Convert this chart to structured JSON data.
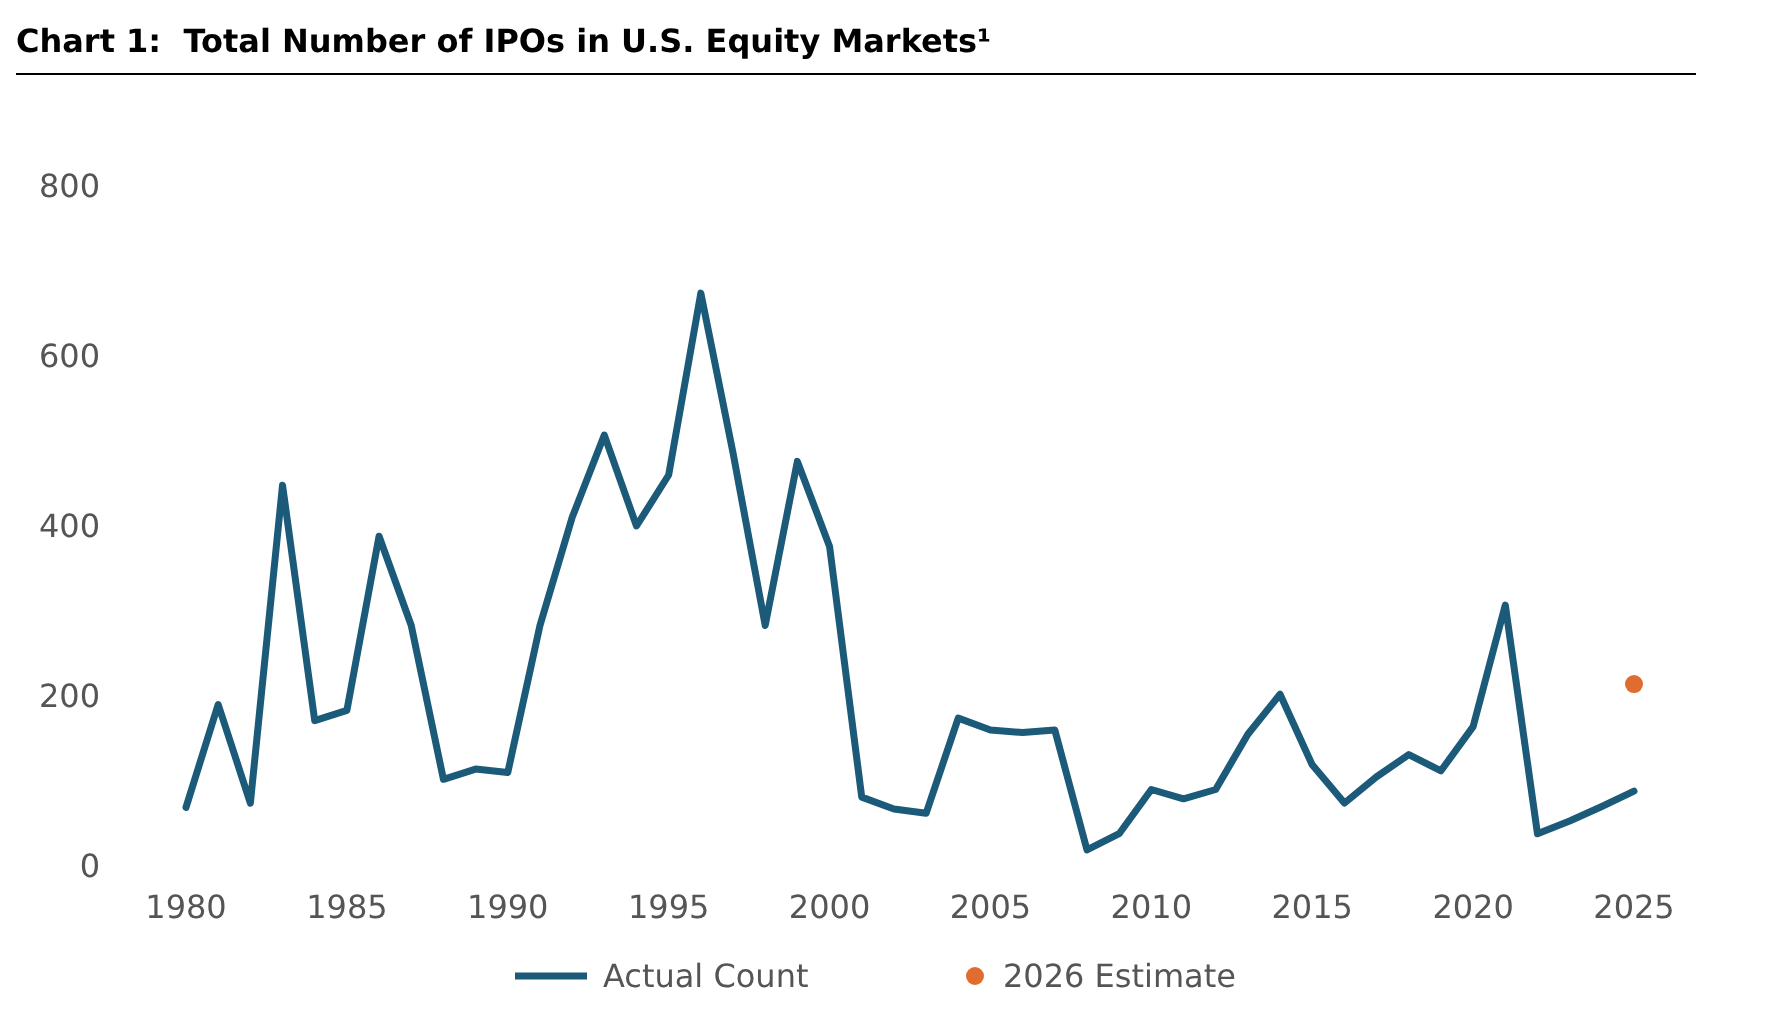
{
  "chart_data": {
    "type": "line",
    "title": "Chart 1:  Total Number of IPOs in U.S. Equity Markets¹",
    "x": [
      1980,
      1981,
      1982,
      1983,
      1984,
      1985,
      1986,
      1987,
      1988,
      1989,
      1990,
      1991,
      1992,
      1993,
      1994,
      1995,
      1996,
      1997,
      1998,
      1999,
      2000,
      2001,
      2002,
      2003,
      2004,
      2005,
      2006,
      2007,
      2008,
      2009,
      2010,
      2011,
      2012,
      2013,
      2014,
      2015,
      2016,
      2017,
      2018,
      2019,
      2020,
      2021,
      2022,
      2023,
      2024,
      2025
    ],
    "series": [
      {
        "name": "Actual Count",
        "color": "#1b5a78",
        "marker": "none",
        "line_style": "solid",
        "values": [
          69,
          190,
          74,
          448,
          171,
          183,
          388,
          283,
          102,
          114,
          110,
          283,
          410,
          507,
          400,
          460,
          674,
          486,
          283,
          476,
          376,
          81,
          67,
          62,
          174,
          160,
          157,
          160,
          19,
          38,
          90,
          79,
          90,
          155,
          202,
          119,
          74,
          105,
          131,
          112,
          164,
          307,
          38,
          53,
          70,
          88
        ]
      },
      {
        "name": "2026 Estimate",
        "color": "#e06c2f",
        "type": "scatter",
        "marker": "circle",
        "x": [
          2025
        ],
        "values": [
          214
        ]
      }
    ],
    "xlim": [
      1980,
      2025
    ],
    "xticks": [
      1980,
      1985,
      1990,
      1995,
      2000,
      2005,
      2010,
      2015,
      2020,
      2025
    ],
    "ylim": [
      0,
      800
    ],
    "yticks": [
      0,
      200,
      400,
      600,
      800
    ],
    "grid": false,
    "legend": "bottom"
  }
}
